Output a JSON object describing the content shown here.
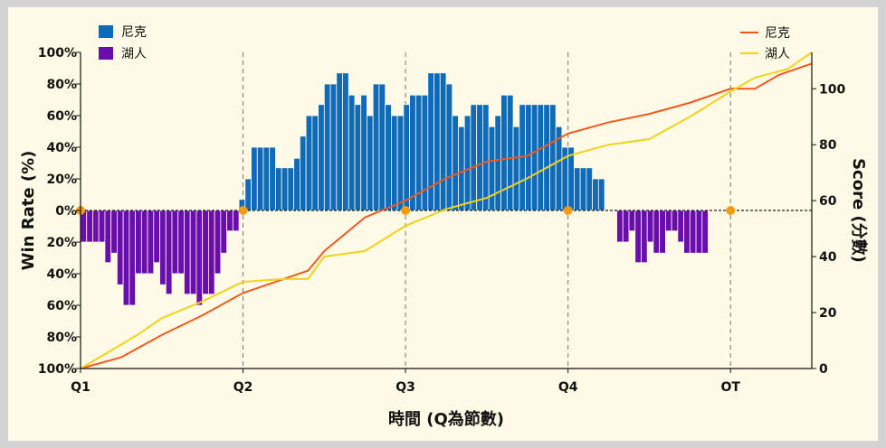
{
  "chart_data": {
    "type": "bar+line",
    "title": "",
    "xlabel": "時間 (Q為節數)",
    "ylabel_left": "Win Rate (%)",
    "ylabel_right": "Score (分數)",
    "x_range": [
      0,
      4.5
    ],
    "x_ticks": [
      {
        "value": 0,
        "label": "Q1"
      },
      {
        "value": 1,
        "label": "Q2"
      },
      {
        "value": 2,
        "label": "Q3"
      },
      {
        "value": 3,
        "label": "Q4"
      },
      {
        "value": 4,
        "label": "OT"
      }
    ],
    "left_axis": {
      "range": [
        -100,
        100
      ],
      "ticks": [
        {
          "value": 100,
          "label": "100%"
        },
        {
          "value": 80,
          "label": "80%"
        },
        {
          "value": 60,
          "label": "60%"
        },
        {
          "value": 40,
          "label": "40%"
        },
        {
          "value": 20,
          "label": "20%"
        },
        {
          "value": 0,
          "label": "0%"
        },
        {
          "value": -20,
          "label": "20%"
        },
        {
          "value": -40,
          "label": "40%"
        },
        {
          "value": -60,
          "label": "60%"
        },
        {
          "value": -80,
          "label": "80%"
        },
        {
          "value": -100,
          "label": "100%"
        }
      ]
    },
    "right_axis": {
      "range": [
        0,
        113
      ],
      "ticks": [
        {
          "value": 0,
          "label": "0"
        },
        {
          "value": 20,
          "label": "20"
        },
        {
          "value": 40,
          "label": "40"
        },
        {
          "value": 60,
          "label": "60"
        },
        {
          "value": 80,
          "label": "80"
        },
        {
          "value": 100,
          "label": "100"
        }
      ]
    },
    "bar_legend": [
      {
        "name": "尼克",
        "color": "#0f6bb8"
      },
      {
        "name": "湖人",
        "color": "#6a0dad"
      }
    ],
    "line_legend": [
      {
        "name": "尼克",
        "color": "#f05a1e"
      },
      {
        "name": "湖人",
        "color": "#f2d21b"
      }
    ],
    "win_rate": {
      "bar_width": 0.0375,
      "values": [
        -20,
        -20,
        -20,
        -20,
        -33,
        -27,
        -47,
        -60,
        -60,
        -40,
        -40,
        -40,
        -33,
        -47,
        -53,
        -40,
        -40,
        -53,
        -53,
        -60,
        -53,
        -53,
        -40,
        -27,
        -13,
        -13,
        7,
        20,
        40,
        40,
        40,
        40,
        27,
        27,
        27,
        33,
        47,
        60,
        60,
        67,
        80,
        80,
        87,
        87,
        73,
        67,
        73,
        60,
        80,
        80,
        67,
        60,
        60,
        67,
        73,
        73,
        73,
        87,
        87,
        87,
        80,
        60,
        53,
        60,
        67,
        67,
        67,
        53,
        60,
        73,
        73,
        53,
        67,
        67,
        67,
        67,
        67,
        67,
        53,
        40,
        40,
        27,
        27,
        27,
        20,
        20,
        0,
        0,
        -20,
        -20,
        -13,
        -33,
        -33,
        -20,
        -27,
        -27,
        -13,
        -13,
        -20,
        -27,
        -27,
        -27,
        -27
      ]
    },
    "score_series": [
      {
        "name": "尼克",
        "color": "#f05a1e",
        "points": [
          [
            0,
            0
          ],
          [
            0.25,
            4
          ],
          [
            0.5,
            12
          ],
          [
            0.75,
            19
          ],
          [
            1.0,
            27
          ],
          [
            1.25,
            32
          ],
          [
            1.4,
            35
          ],
          [
            1.5,
            42
          ],
          [
            1.75,
            54
          ],
          [
            2.0,
            60
          ],
          [
            2.25,
            68
          ],
          [
            2.5,
            74
          ],
          [
            2.75,
            76
          ],
          [
            3.0,
            84
          ],
          [
            3.25,
            88
          ],
          [
            3.5,
            91
          ],
          [
            3.75,
            95
          ],
          [
            4.0,
            100
          ],
          [
            4.15,
            100
          ],
          [
            4.3,
            105
          ],
          [
            4.5,
            109
          ]
        ]
      },
      {
        "name": "湖人",
        "color": "#f2d21b",
        "points": [
          [
            0,
            0
          ],
          [
            0.35,
            12
          ],
          [
            0.5,
            18
          ],
          [
            0.75,
            24
          ],
          [
            1.0,
            31
          ],
          [
            1.25,
            32
          ],
          [
            1.4,
            32
          ],
          [
            1.5,
            40
          ],
          [
            1.75,
            42
          ],
          [
            2.0,
            51
          ],
          [
            2.25,
            57
          ],
          [
            2.5,
            61
          ],
          [
            2.75,
            68
          ],
          [
            3.0,
            76
          ],
          [
            3.25,
            80
          ],
          [
            3.5,
            82
          ],
          [
            3.75,
            90
          ],
          [
            4.0,
            99
          ],
          [
            4.15,
            104
          ],
          [
            4.35,
            107
          ],
          [
            4.5,
            113
          ]
        ]
      }
    ],
    "quarter_markers": [
      0,
      1,
      2,
      3,
      4
    ],
    "marker_color": "#f39c12",
    "vertical_gridlines_at": [
      1,
      2,
      3,
      4
    ],
    "grid": false,
    "background": "#fffbe6"
  }
}
